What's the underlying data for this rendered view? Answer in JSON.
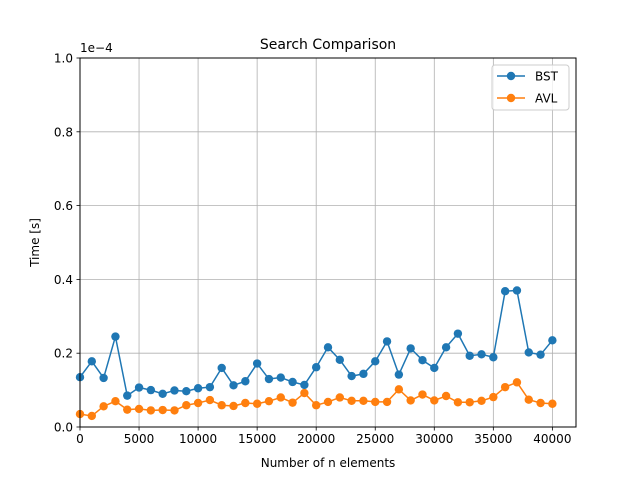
{
  "chart_data": {
    "type": "line",
    "title": "Search Comparison",
    "xlabel": "Number of n elements",
    "ylabel": "Time [s]",
    "y_scale_label": "1e−4",
    "xlim": [
      0,
      42000
    ],
    "ylim": [
      0,
      1.0
    ],
    "grid": true,
    "legend_position": "top-right",
    "x_ticks": [
      0,
      5000,
      10000,
      15000,
      20000,
      25000,
      30000,
      35000,
      40000
    ],
    "x_tick_labels": [
      "0",
      "5000",
      "10000",
      "15000",
      "20000",
      "25000",
      "30000",
      "35000",
      "40000"
    ],
    "y_ticks": [
      0,
      0.2,
      0.4,
      0.6,
      0.8,
      1.0
    ],
    "y_tick_labels": [
      "0.0",
      "0.2",
      "0.4",
      "0.6",
      "0.8",
      "1.0"
    ],
    "x": [
      0,
      1000,
      2000,
      3000,
      4000,
      5000,
      6000,
      7000,
      8000,
      9000,
      10000,
      11000,
      12000,
      13000,
      14000,
      15000,
      16000,
      17000,
      18000,
      19000,
      20000,
      21000,
      22000,
      23000,
      24000,
      25000,
      26000,
      27000,
      28000,
      29000,
      30000,
      31000,
      32000,
      33000,
      34000,
      35000,
      36000,
      37000,
      38000,
      39000,
      40000
    ],
    "series": [
      {
        "name": "BST",
        "color": "#1f77b4",
        "values": [
          0.135,
          0.178,
          0.133,
          0.245,
          0.085,
          0.107,
          0.1,
          0.09,
          0.099,
          0.097,
          0.105,
          0.108,
          0.16,
          0.113,
          0.124,
          0.172,
          0.13,
          0.134,
          0.122,
          0.114,
          0.162,
          0.216,
          0.182,
          0.138,
          0.144,
          0.178,
          0.232,
          0.142,
          0.213,
          0.181,
          0.16,
          0.216,
          0.253,
          0.193,
          0.197,
          0.189,
          0.368,
          0.37,
          0.202,
          0.196,
          0.235
        ]
      },
      {
        "name": "AVL",
        "color": "#ff7f0e",
        "values": [
          0.035,
          0.03,
          0.056,
          0.07,
          0.047,
          0.049,
          0.045,
          0.046,
          0.045,
          0.059,
          0.065,
          0.073,
          0.059,
          0.057,
          0.065,
          0.063,
          0.07,
          0.08,
          0.066,
          0.092,
          0.059,
          0.068,
          0.08,
          0.071,
          0.071,
          0.068,
          0.068,
          0.102,
          0.072,
          0.088,
          0.072,
          0.084,
          0.067,
          0.067,
          0.071,
          0.081,
          0.108,
          0.121,
          0.074,
          0.065,
          0.063
        ]
      }
    ]
  }
}
